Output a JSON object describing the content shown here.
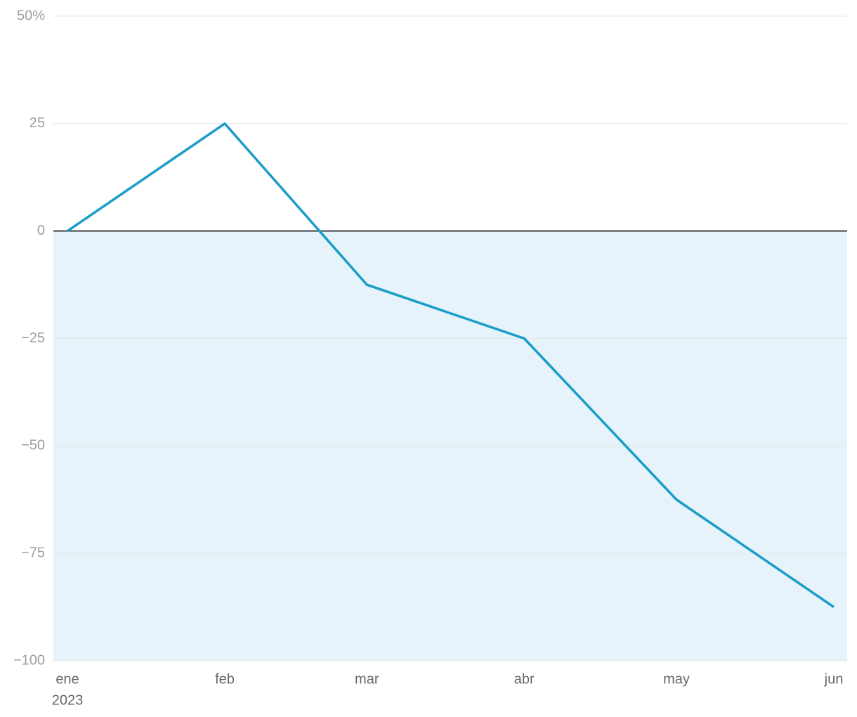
{
  "chart_data": {
    "type": "line",
    "x": [
      "2023-01",
      "2023-02",
      "2023-03",
      "2023-04",
      "2023-05",
      "2023-06"
    ],
    "series": [
      {
        "color": "#1a9dc8",
        "values": [
          0,
          25,
          -12.5,
          -25,
          -62.5,
          -87.5
        ]
      }
    ],
    "xticks": [
      {
        "value": "2023-01",
        "label": "ene"
      },
      {
        "value": "2023-02",
        "label": "feb"
      },
      {
        "value": "2023-03",
        "label": "mar"
      },
      {
        "value": "2023-04",
        "label": "abr"
      },
      {
        "value": "2023-05",
        "label": "may"
      },
      {
        "value": "2023-06",
        "label": "jun"
      }
    ],
    "x_year_label": "2023",
    "ylim": [
      -100,
      50
    ],
    "yticks": [
      {
        "value": -100,
        "label": "−100"
      },
      {
        "value": -75,
        "label": "−75"
      },
      {
        "value": -50,
        "label": "−50"
      },
      {
        "value": -25,
        "label": "−25"
      },
      0,
      25,
      {
        "value": 50,
        "label": "50%"
      }
    ],
    "grid": true,
    "grid_color": "#e4e4e4",
    "zero_line_color": "#000000",
    "negative_region_color": "#e6f3fa"
  }
}
